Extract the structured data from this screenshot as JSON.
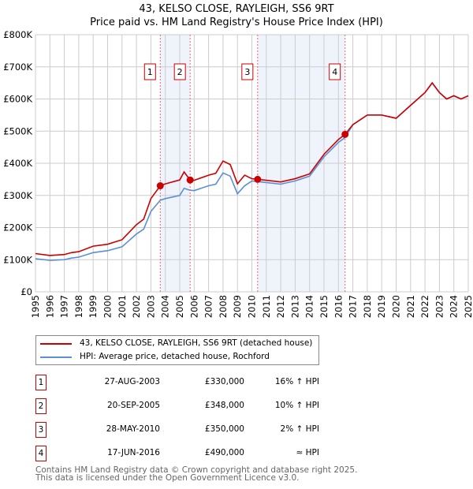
{
  "title": "43, KELSO CLOSE, RAYLEIGH, SS6 9RT",
  "subtitle": "Price paid vs. HM Land Registry's House Price Index (HPI)",
  "legend": [
    {
      "label": "43, KELSO CLOSE, RAYLEIGH, SS6 9RT (detached house)",
      "color": "#cc0000"
    },
    {
      "label": "HPI: Average price, detached house, Rochford",
      "color": "#5b8fd4"
    }
  ],
  "sales": [
    {
      "n": "1",
      "date": "27-AUG-2003",
      "price": "£330,000",
      "hpi": "16% ↑ HPI",
      "year": 2003.65,
      "value": 330
    },
    {
      "n": "2",
      "date": "20-SEP-2005",
      "price": "£348,000",
      "hpi": "10% ↑ HPI",
      "year": 2005.72,
      "value": 348
    },
    {
      "n": "3",
      "date": "28-MAY-2010",
      "price": "£350,000",
      "hpi": "2% ↑ HPI",
      "year": 2010.4,
      "value": 350
    },
    {
      "n": "4",
      "date": "17-JUN-2016",
      "price": "£490,000",
      "hpi": "≈ HPI",
      "year": 2016.46,
      "value": 490
    }
  ],
  "footer": [
    "Contains HM Land Registry data © Crown copyright and database right 2025.",
    "This data is licensed under the Open Government Licence v3.0."
  ],
  "chart_data": {
    "type": "line",
    "ylim": [
      0,
      800
    ],
    "xlim": [
      1995,
      2025
    ],
    "yticks": [
      "£0",
      "£100K",
      "£200K",
      "£300K",
      "£400K",
      "£500K",
      "£600K",
      "£700K",
      "£800K"
    ],
    "xticks": [
      "1995",
      "1996",
      "1997",
      "1998",
      "1999",
      "2000",
      "2001",
      "2002",
      "2003",
      "2004",
      "2005",
      "2006",
      "2007",
      "2008",
      "2009",
      "2010",
      "2011",
      "2012",
      "2013",
      "2014",
      "2015",
      "2016",
      "2017",
      "2018",
      "2019",
      "2020",
      "2021",
      "2022",
      "2023",
      "2024",
      "2025"
    ],
    "x": [
      1995,
      1996,
      1997,
      1997.5,
      1998,
      1999,
      2000,
      2001,
      2002,
      2002.5,
      2003,
      2003.65,
      2004,
      2005,
      2005.3,
      2005.72,
      2006,
      2007,
      2007.5,
      2008,
      2008.5,
      2009,
      2009.5,
      2010,
      2010.4,
      2011,
      2012,
      2013,
      2014,
      2015,
      2016,
      2016.46,
      2017,
      2018,
      2019,
      2020,
      2021,
      2022,
      2022.5,
      2023,
      2023.5,
      2024,
      2024.5,
      2025
    ],
    "series": [
      {
        "name": "HPI",
        "values": [
          103,
          98,
          100,
          105,
          108,
          122,
          128,
          140,
          180,
          195,
          250,
          285,
          290,
          300,
          322,
          316,
          315,
          330,
          335,
          370,
          360,
          305,
          330,
          345,
          343,
          340,
          335,
          345,
          360,
          420,
          465,
          480,
          520,
          550,
          550,
          540,
          580,
          620,
          650,
          620,
          600,
          610,
          600,
          610
        ]
      },
      {
        "name": "Price paid",
        "values": [
          119,
          113,
          116,
          122,
          125,
          142,
          148,
          162,
          209,
          226,
          290,
          330,
          336,
          348,
          373,
          348,
          347,
          363,
          369,
          407,
          396,
          336,
          363,
          352,
          350,
          347,
          342,
          352,
          367,
          428,
          474,
          490,
          520,
          550,
          550,
          540,
          580,
          620,
          650,
          620,
          600,
          610,
          600,
          610
        ]
      }
    ]
  }
}
